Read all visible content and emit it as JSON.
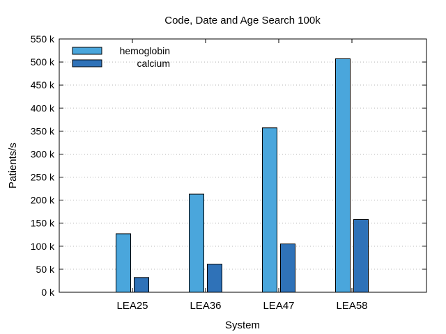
{
  "chart_data": {
    "type": "bar",
    "title": "Code, Date and Age Search 100k",
    "xlabel": "System",
    "ylabel": "Patients/s",
    "categories": [
      "LEA25",
      "LEA36",
      "LEA47",
      "LEA58"
    ],
    "series": [
      {
        "name": "hemoglobin",
        "color": "#4aa6dc",
        "values": [
          127000,
          213000,
          357000,
          507000
        ]
      },
      {
        "name": "calcium",
        "color": "#2f72b8",
        "values": [
          32000,
          61000,
          105000,
          158000
        ]
      }
    ],
    "ylim": [
      0,
      550000
    ],
    "yticks": [
      0,
      50000,
      100000,
      150000,
      200000,
      250000,
      300000,
      350000,
      400000,
      450000,
      500000,
      550000
    ],
    "ytick_labels": [
      "0 k",
      "50 k",
      "100 k",
      "150 k",
      "200 k",
      "250 k",
      "300 k",
      "350 k",
      "400 k",
      "450 k",
      "500 k",
      "550 k"
    ],
    "grid": true,
    "legend_position": "top-left"
  }
}
